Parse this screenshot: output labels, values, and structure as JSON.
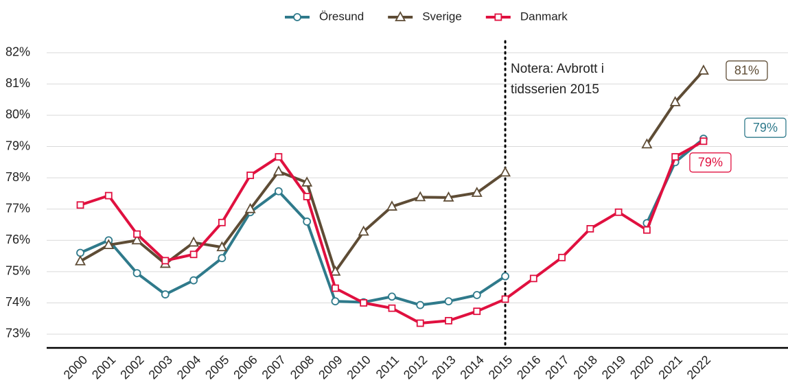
{
  "chart_data": {
    "type": "line",
    "categories": [
      "2000",
      "2001",
      "2002",
      "2003",
      "2004",
      "2005",
      "2006",
      "2007",
      "2008",
      "2009",
      "2010",
      "2011",
      "2012",
      "2013",
      "2014",
      "2015",
      "2016",
      "2017",
      "2018",
      "2019",
      "2020",
      "2021",
      "2022"
    ],
    "series": [
      {
        "name": "Öresund",
        "color": "#2f7a8b",
        "marker": "circle",
        "end_label": "79%",
        "values": [
          75.6,
          76.0,
          74.95,
          74.27,
          74.72,
          75.43,
          76.9,
          77.57,
          76.6,
          74.05,
          74.02,
          74.2,
          73.93,
          74.05,
          74.25,
          74.85,
          null,
          null,
          null,
          null,
          76.55,
          78.5,
          79.25
        ]
      },
      {
        "name": "Sverige",
        "color": "#5e4c35",
        "marker": "triangle",
        "end_label": "81%",
        "values": [
          75.33,
          75.85,
          76.0,
          75.25,
          75.93,
          75.78,
          77.0,
          78.2,
          77.85,
          75.0,
          76.28,
          77.08,
          77.38,
          77.37,
          77.52,
          78.17,
          null,
          null,
          null,
          null,
          79.07,
          80.42,
          81.43
        ]
      },
      {
        "name": "Danmark",
        "color": "#e0103f",
        "marker": "square",
        "end_label": "79%",
        "values": [
          77.13,
          77.43,
          76.2,
          75.35,
          75.55,
          76.57,
          78.08,
          78.67,
          77.4,
          74.47,
          74.0,
          73.83,
          73.35,
          73.43,
          73.73,
          74.12,
          74.78,
          75.45,
          76.37,
          76.9,
          76.33,
          78.67,
          79.17
        ]
      }
    ],
    "ylim": [
      72.56,
      82.37
    ],
    "yticks": [
      {
        "value": 73,
        "label": "73%"
      },
      {
        "value": 74,
        "label": "74%"
      },
      {
        "value": 75,
        "label": "75%"
      },
      {
        "value": 76,
        "label": "76%"
      },
      {
        "value": 77,
        "label": "77%"
      },
      {
        "value": 78,
        "label": "78%"
      },
      {
        "value": 79,
        "label": "79%"
      },
      {
        "value": 80,
        "label": "80%"
      },
      {
        "value": 81,
        "label": "81%"
      },
      {
        "value": 82,
        "label": "82%"
      }
    ],
    "grid": true,
    "legend": "top",
    "annotation": {
      "lines": [
        "Notera: Avbrott i",
        "tidsserien 2015"
      ],
      "at": "2015"
    }
  }
}
